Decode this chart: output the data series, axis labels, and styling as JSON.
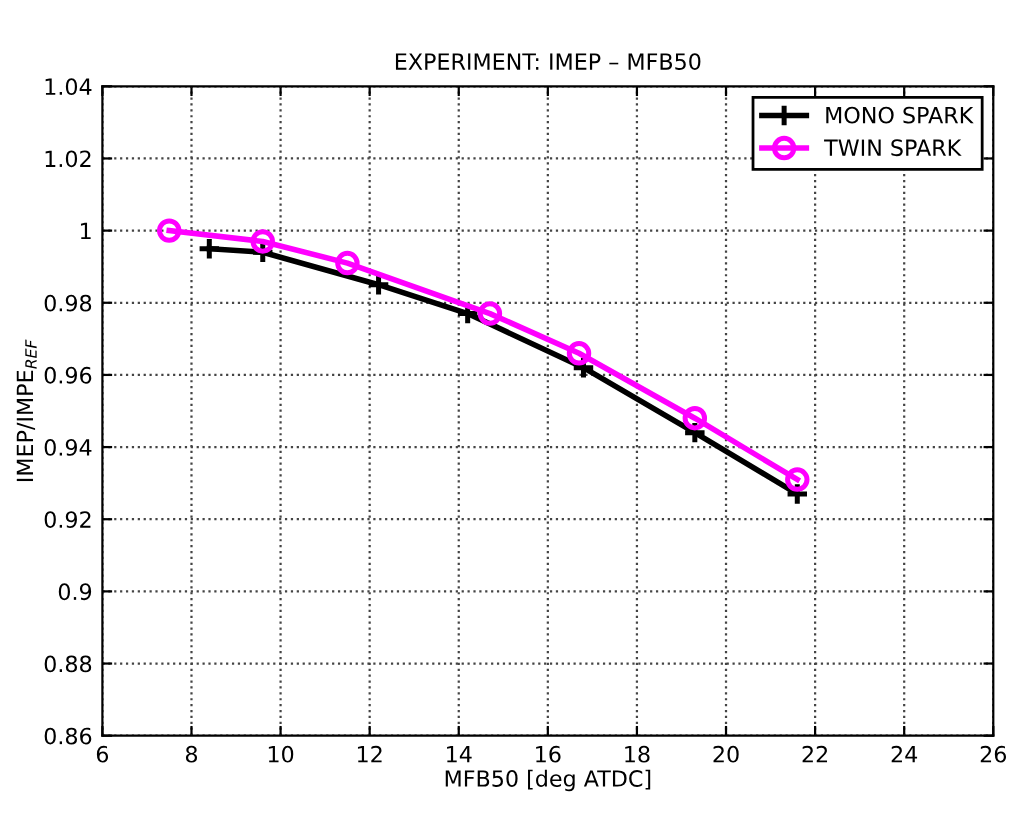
{
  "chart_data": {
    "type": "line",
    "title": "EXPERIMENT: IMEP – MFB50",
    "xlabel": "MFB50 [deg ATDC]",
    "ylabel": "IMEP/IMPE$_{REF}$",
    "series": [
      {
        "name": "MONO SPARK",
        "color": "#000000",
        "marker": "cross",
        "x": [
          8.4,
          9.6,
          12.2,
          14.2,
          16.8,
          19.3,
          21.6
        ],
        "values": [
          0.995,
          0.994,
          0.985,
          0.977,
          0.962,
          0.944,
          0.927
        ]
      },
      {
        "name": "TWIN SPARK",
        "color": "#ff00ff",
        "marker": "circle",
        "x": [
          7.5,
          9.6,
          11.5,
          14.7,
          16.7,
          19.3,
          21.6
        ],
        "values": [
          1.0,
          0.997,
          0.991,
          0.977,
          0.966,
          0.948,
          0.931
        ]
      }
    ],
    "xlim": [
      6,
      26
    ],
    "xticks": [
      6,
      8,
      10,
      12,
      14,
      16,
      18,
      20,
      22,
      24,
      26
    ],
    "ylim": [
      0.86,
      1.04
    ],
    "yticks": [
      0.86,
      0.88,
      0.9,
      0.92,
      0.94,
      0.96,
      0.98,
      1,
      1.02,
      1.04
    ],
    "grid": true,
    "legend": "top right",
    "line_style": "solid"
  }
}
